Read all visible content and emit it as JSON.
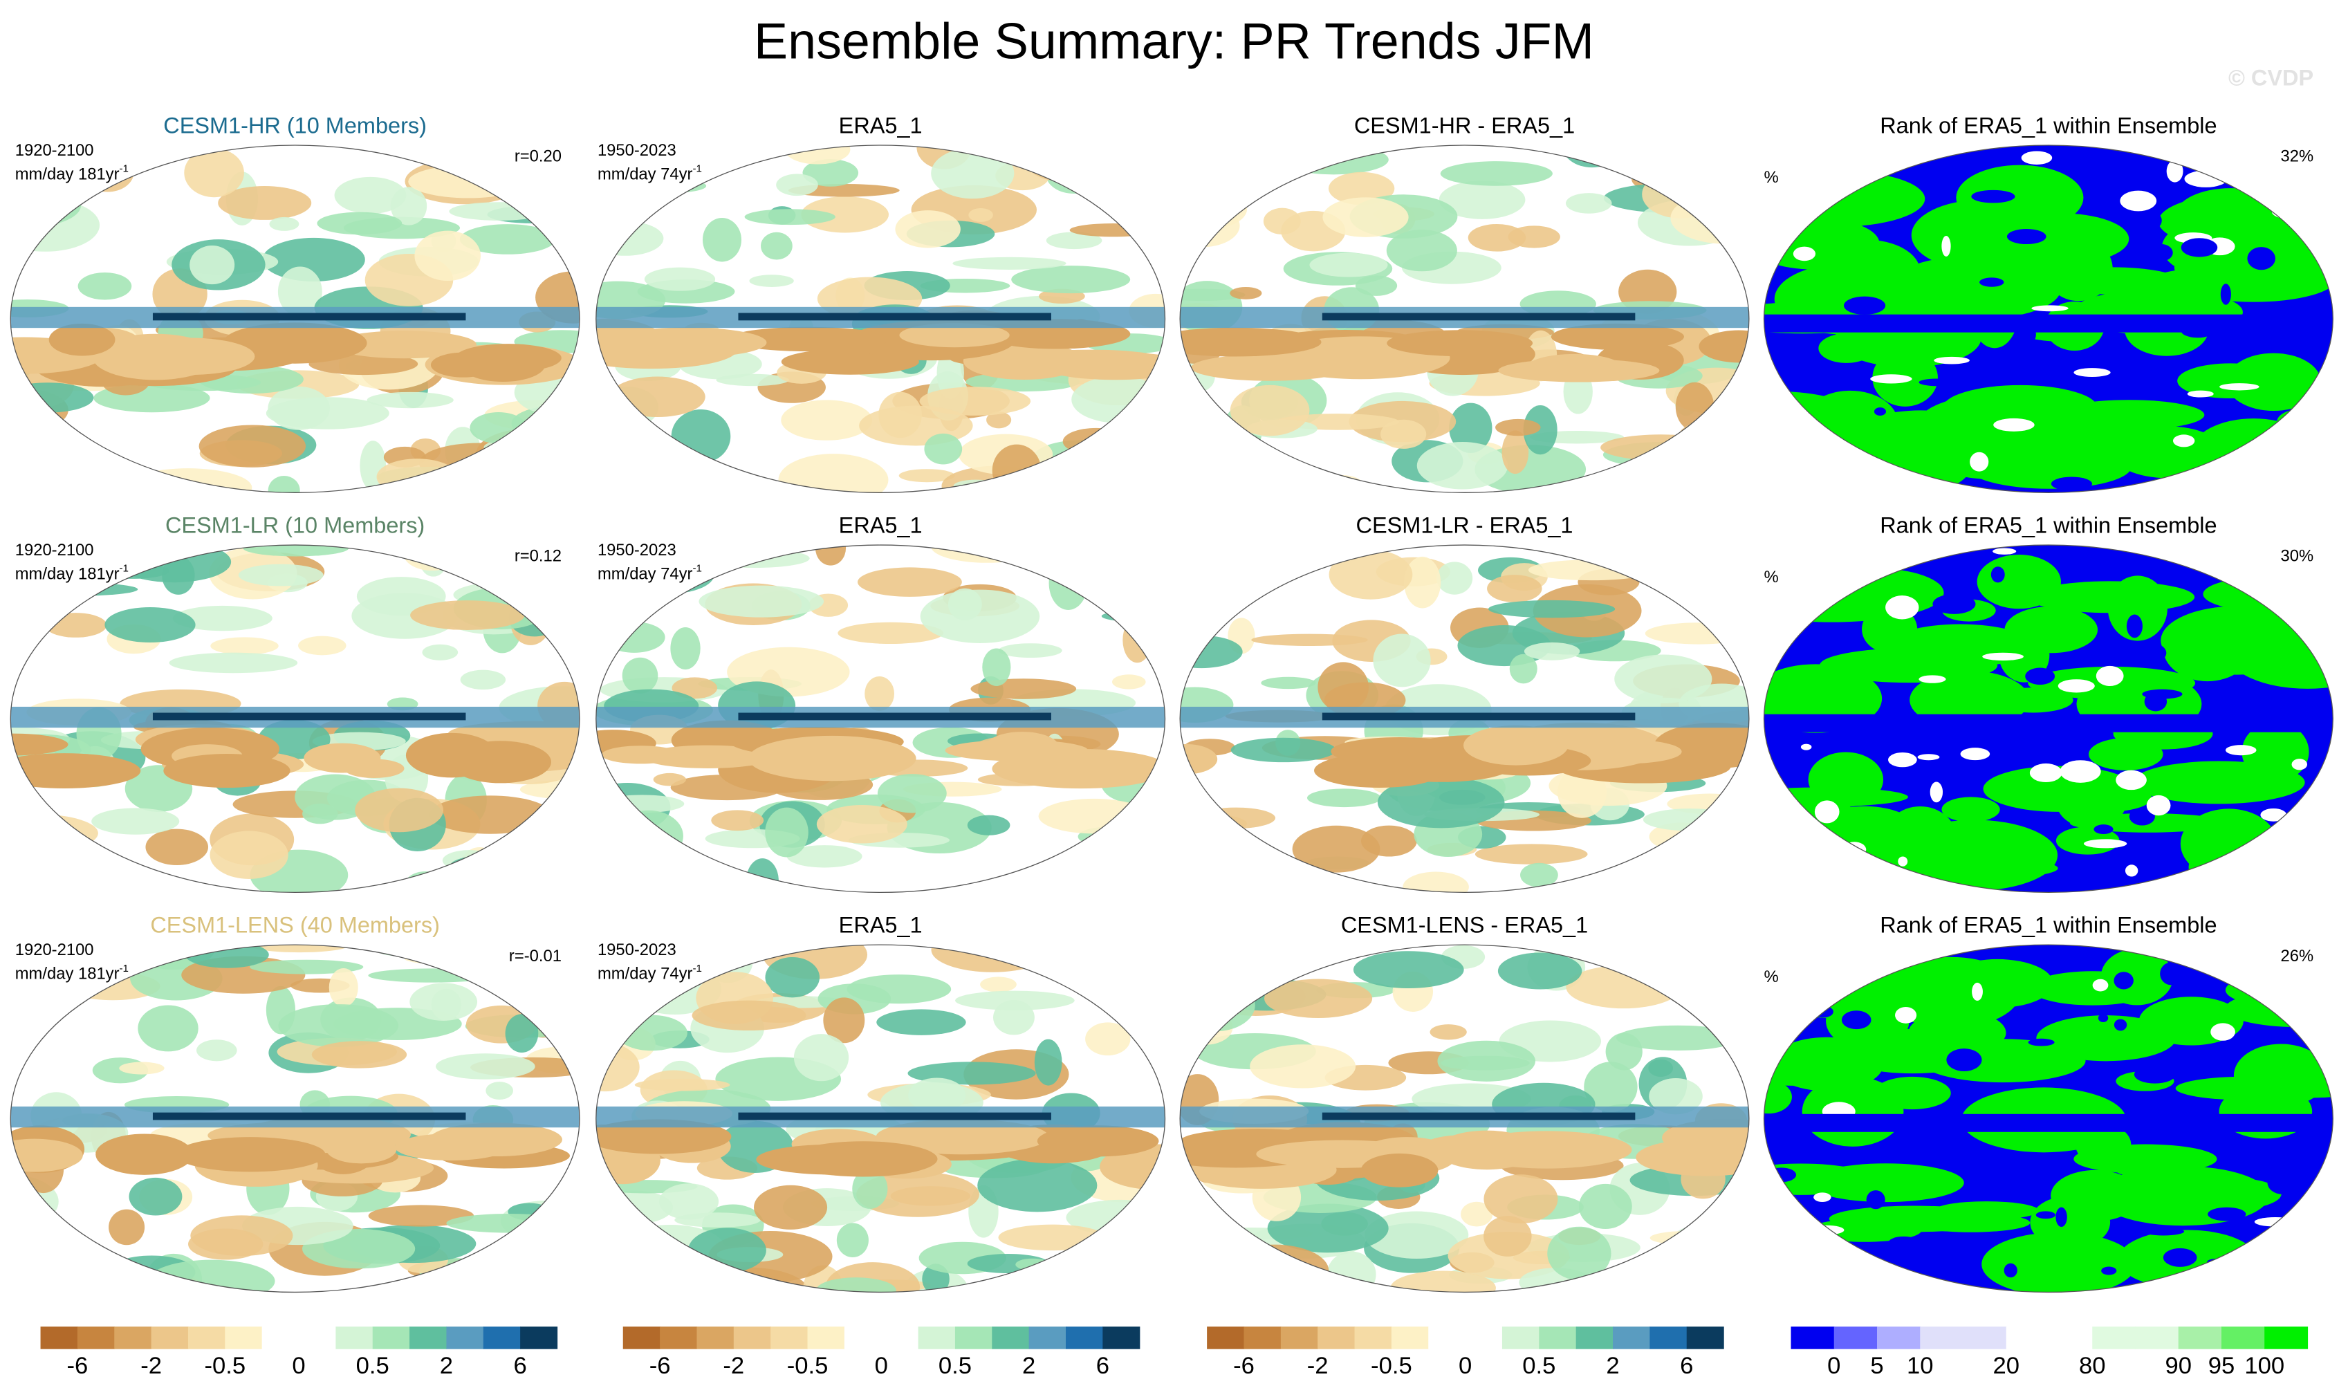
{
  "title": "Ensemble Summary: PR Trends JFM",
  "watermark": "© CVDP",
  "rows": [
    {
      "model": {
        "title": "CESM1-HR (10 Members)",
        "color": "#1b6b8f",
        "period": "1920-2100",
        "units": "mm/day 181yr",
        "units_exp": "-1",
        "stat": "r=0.20"
      },
      "obs": {
        "title": "ERA5_1",
        "period": "1950-2023",
        "units": "mm/day 74yr",
        "units_exp": "-1"
      },
      "diff": {
        "title": "CESM1-HR - ERA5_1"
      },
      "rank": {
        "title": "Rank of ERA5_1 within Ensemble",
        "units": "%",
        "stat": "32%"
      }
    },
    {
      "model": {
        "title": "CESM1-LR (10 Members)",
        "color": "#5a8466",
        "period": "1920-2100",
        "units": "mm/day 181yr",
        "units_exp": "-1",
        "stat": "r=0.12"
      },
      "obs": {
        "title": "ERA5_1",
        "period": "1950-2023",
        "units": "mm/day 74yr",
        "units_exp": "-1"
      },
      "diff": {
        "title": "CESM1-LR - ERA5_1"
      },
      "rank": {
        "title": "Rank of ERA5_1 within Ensemble",
        "units": "%",
        "stat": "30%"
      }
    },
    {
      "model": {
        "title": "CESM1-LENS (40 Members)",
        "color": "#d9c17c",
        "period": "1920-2100",
        "units": "mm/day 181yr",
        "units_exp": "-1",
        "stat": "r=-0.01"
      },
      "obs": {
        "title": "ERA5_1",
        "period": "1950-2023",
        "units": "mm/day 74yr",
        "units_exp": "-1"
      },
      "diff": {
        "title": "CESM1-LENS - ERA5_1"
      },
      "rank": {
        "title": "Rank of ERA5_1 within Ensemble",
        "units": "%",
        "stat": "26%"
      }
    }
  ],
  "colorbars": {
    "trend": {
      "colors": [
        "#b36a2a",
        "#c7853f",
        "#daa662",
        "#ecc68a",
        "#f5dba5",
        "#fdf1c6",
        "#ffffff",
        "#ffffff",
        "#d4f4d6",
        "#a5e6b6",
        "#5fbf9e",
        "#5a9cc0",
        "#1f6fae",
        "#0b3b5e"
      ],
      "labels": [
        -6,
        -2,
        -0.5,
        0,
        0.5,
        2,
        6
      ]
    },
    "rank": {
      "colors": [
        "#0000f0",
        "#6464ff",
        "#aeaeff",
        "#e0e0fa",
        "#e0e0fa",
        "#ffffff",
        "#ffffff",
        "#e0fae0",
        "#e0fae0",
        "#a8f0a8",
        "#64f064",
        "#00f000"
      ],
      "labels": [
        0,
        5,
        10,
        20,
        80,
        90,
        95,
        100
      ]
    }
  }
}
